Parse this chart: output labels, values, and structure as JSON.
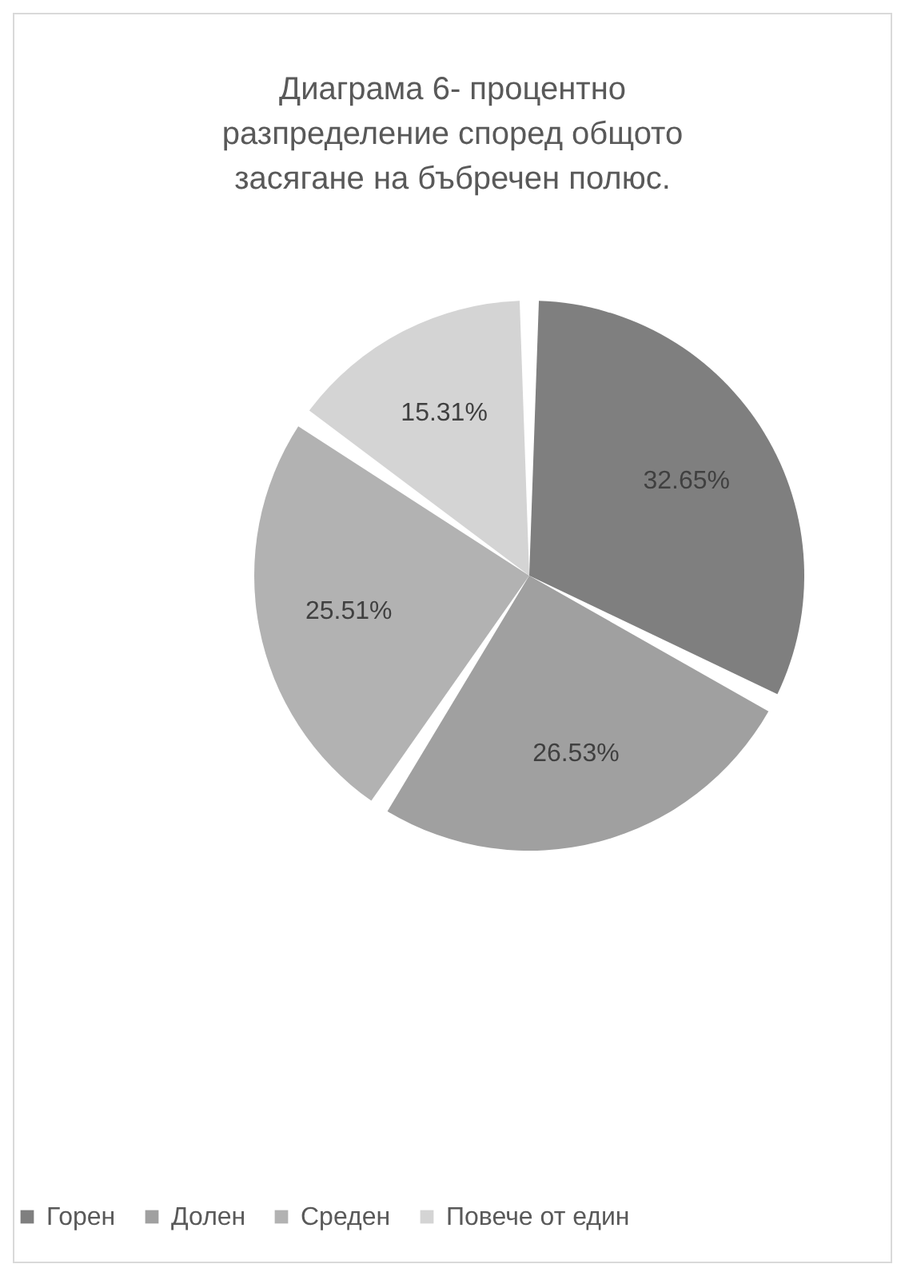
{
  "chart_data": {
    "type": "pie",
    "title": "Диаграма 6- процентно разпределение според общото засягане на бъбречен полюс.",
    "categories": [
      "Горен",
      "Долен",
      "Среден",
      "Повече от един"
    ],
    "values": [
      32.65,
      26.53,
      25.51,
      15.31
    ],
    "value_labels": [
      "32.65%",
      "26.53%",
      "25.51%",
      "15.31%"
    ],
    "colors": [
      "#7f7f7f",
      "#a0a0a0",
      "#b2b2b2",
      "#d4d4d4"
    ],
    "legend": "bottom"
  }
}
